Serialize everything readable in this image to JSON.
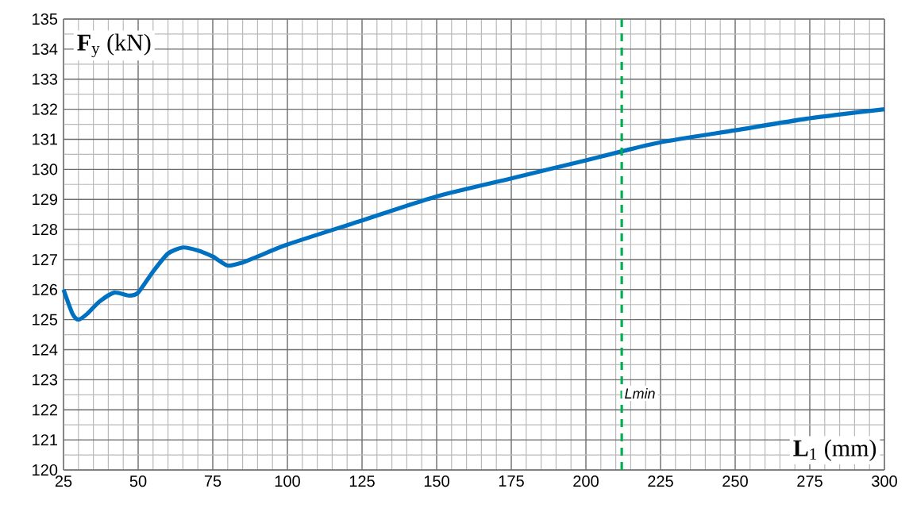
{
  "chart_data": {
    "type": "line",
    "xlabel": "**L**$_{1}$ (mm)",
    "ylabel": "**F**$_{y}$ (kN)",
    "x": [
      25,
      28,
      30,
      33,
      37,
      42,
      47,
      50,
      55,
      60,
      65,
      70,
      75,
      80,
      85,
      90,
      100,
      125,
      150,
      175,
      200,
      212,
      225,
      250,
      275,
      300
    ],
    "series": [
      {
        "color": "#0070c0",
        "values": [
          126.0,
          125.2,
          125.0,
          125.2,
          125.6,
          125.9,
          125.8,
          125.9,
          126.6,
          127.2,
          127.4,
          127.3,
          127.1,
          126.8,
          126.9,
          127.1,
          127.5,
          128.3,
          129.1,
          129.7,
          130.3,
          130.6,
          130.9,
          131.3,
          131.7,
          132.0
        ]
      }
    ],
    "xlim": [
      25,
      300
    ],
    "ylim": [
      120,
      135
    ],
    "xticks": [
      25,
      50,
      75,
      100,
      125,
      150,
      175,
      200,
      225,
      250,
      275,
      300
    ],
    "yticks": [
      120,
      121,
      122,
      123,
      124,
      125,
      126,
      127,
      128,
      129,
      130,
      131,
      132,
      133,
      134,
      135
    ],
    "grid": true,
    "marker": "none",
    "line_style": "solid",
    "ref_lines": [
      {
        "axis": "x",
        "value": 212,
        "label": "Lmin",
        "color": "#00b050",
        "line_style": "dashed"
      }
    ]
  }
}
